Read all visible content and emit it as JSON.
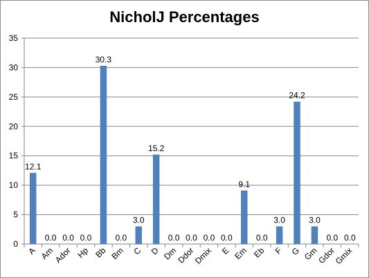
{
  "chart_data": {
    "type": "bar",
    "title": "NicholJ Percentages",
    "xlabel": "",
    "ylabel": "",
    "categories": [
      "A",
      "Am",
      "Ador",
      "Hp",
      "Bb",
      "Bm",
      "C",
      "D",
      "Dm",
      "Ddor",
      "Dmix",
      "E",
      "Em",
      "Eb",
      "F",
      "G",
      "Gm",
      "Gdor",
      "Gmix"
    ],
    "values": [
      12.1,
      0.0,
      0.0,
      0.0,
      30.3,
      0.0,
      3.0,
      15.2,
      0.0,
      0.0,
      0.0,
      0.0,
      9.1,
      0.0,
      3.0,
      24.2,
      3.0,
      0.0,
      0.0
    ],
    "data_labels": [
      "12.1",
      "0.0",
      "0.0",
      "0.0",
      "30.3",
      "0.0",
      "3.0",
      "15.2",
      "0.0",
      "0.0",
      "0.0",
      "0.0",
      "9.1",
      "0.0",
      "3.0",
      "24.2",
      "3.0",
      "0.0",
      "0.0"
    ],
    "ylim": [
      0,
      35
    ],
    "yticks": [
      0,
      5,
      10,
      15,
      20,
      25,
      30,
      35
    ],
    "grid": true,
    "legend": "none",
    "bar_color": "#4f81bd",
    "grid_color": "#868686"
  }
}
